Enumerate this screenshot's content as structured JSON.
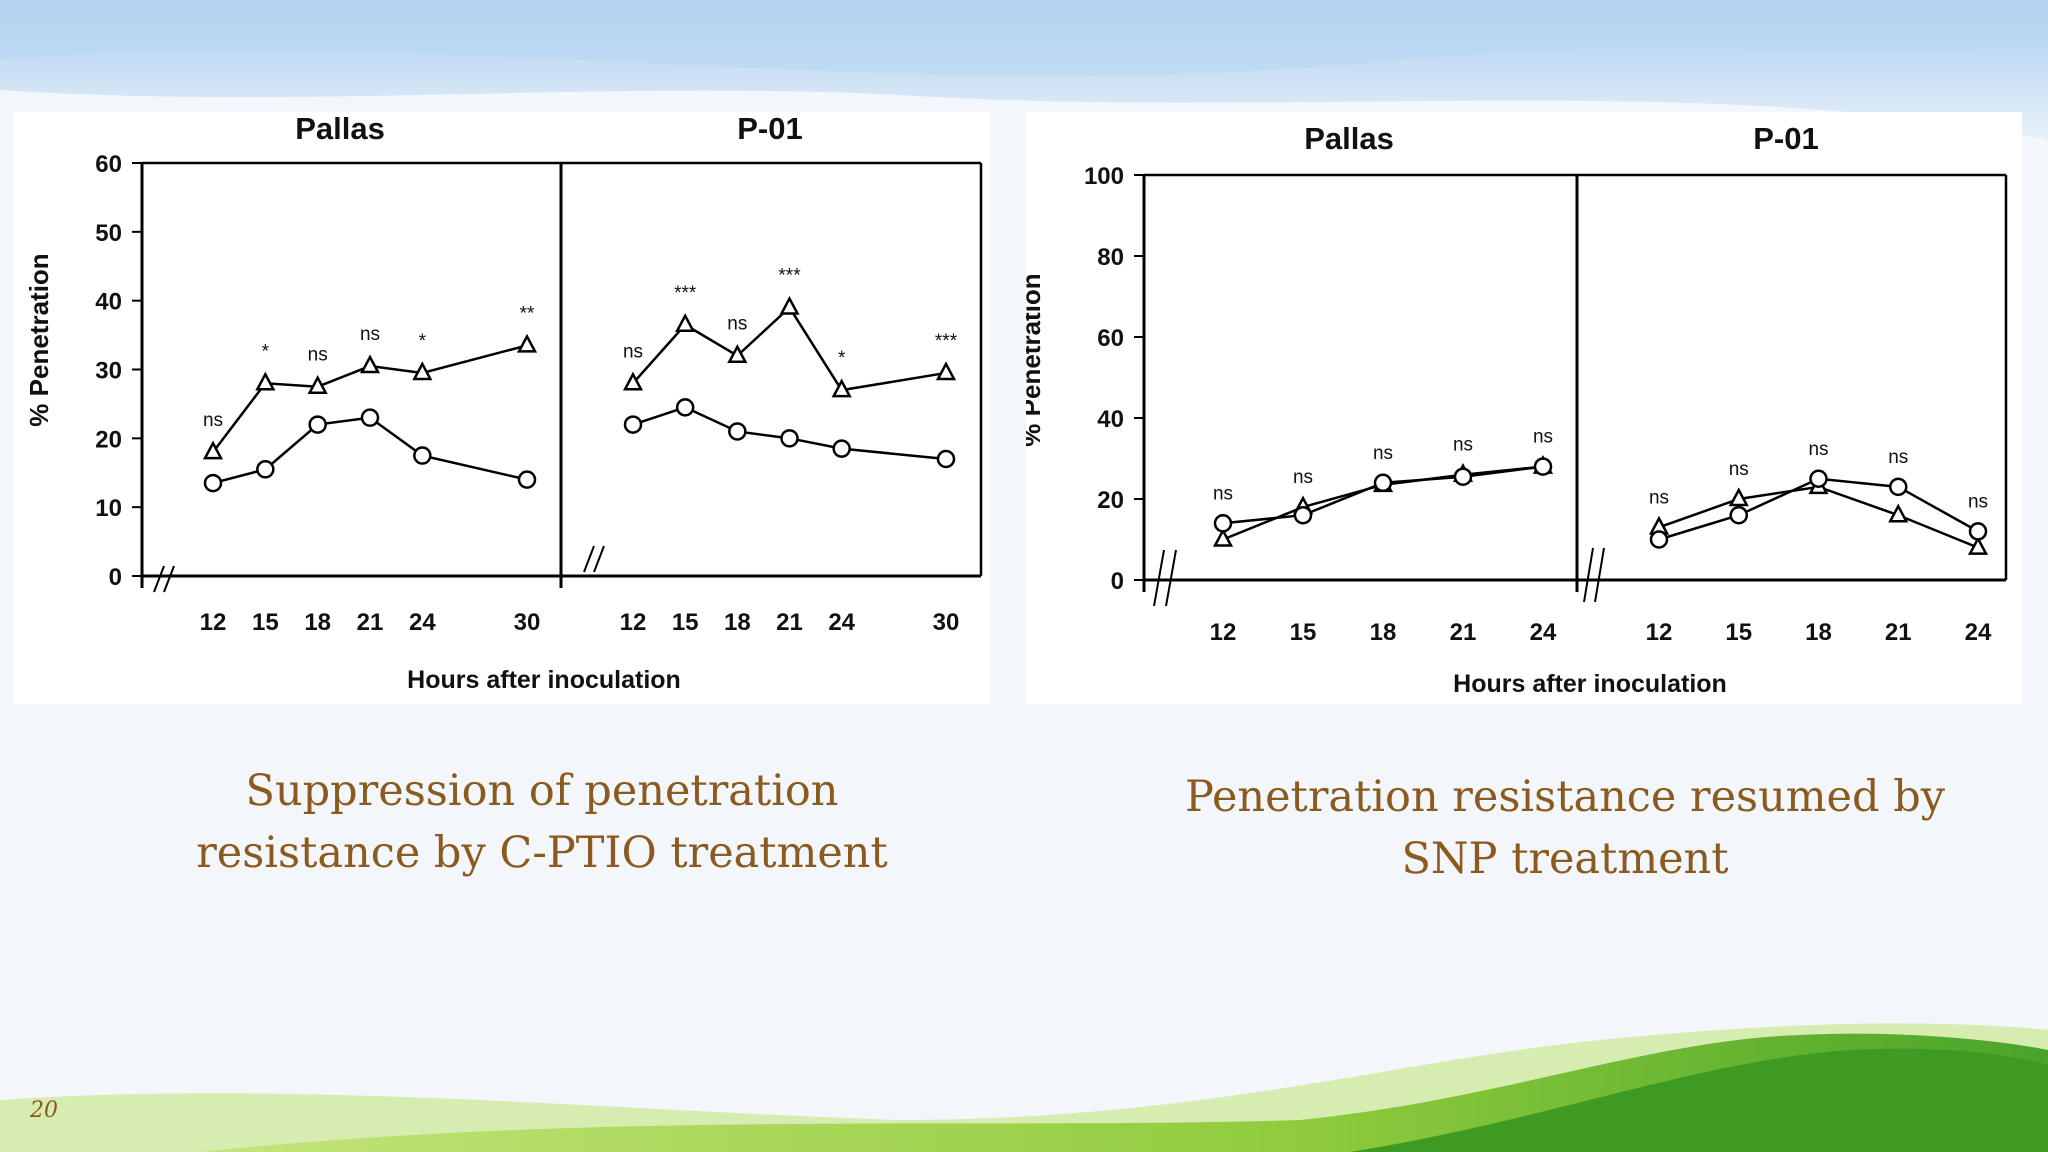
{
  "slide": {
    "number": "20",
    "caption_left": "Suppression of penetration\nresistance by C-PTIO treatment",
    "caption_right": "Penetration resistance resumed by\nSNP treatment"
  },
  "colors": {
    "text_accent": "#8a5a1e",
    "sky": "#a9cdee",
    "grass_light": "#b6dd55",
    "grass_dark": "#3f9a24"
  },
  "chart_data": [
    {
      "type": "line",
      "ylabel": "% Penetration",
      "xlabel": "Hours after inoculation",
      "ylim": [
        0,
        60
      ],
      "yticks": [
        0,
        10,
        20,
        30,
        40,
        50,
        60
      ],
      "axis_break": true,
      "markers": {
        "triangle": "open triangle",
        "circle": "open circle"
      },
      "panels": [
        {
          "title": "Pallas",
          "x": [
            12,
            15,
            18,
            21,
            24,
            30
          ],
          "xtick_labels": [
            "12",
            "15",
            "18",
            "21",
            "24",
            "30"
          ],
          "series": [
            {
              "marker": "triangle",
              "values": [
                18,
                28,
                27.5,
                30.5,
                29.5,
                33.5
              ]
            },
            {
              "marker": "circle",
              "values": [
                13.5,
                15.5,
                22,
                23,
                17.5,
                14
              ]
            }
          ],
          "annotations": [
            "ns",
            "*",
            "ns",
            "ns",
            "*",
            "**"
          ]
        },
        {
          "title": "P-01",
          "x": [
            12,
            15,
            18,
            21,
            24,
            30
          ],
          "xtick_labels": [
            "12",
            "15",
            "18",
            "21",
            "24",
            "30"
          ],
          "series": [
            {
              "marker": "triangle",
              "values": [
                28,
                36.5,
                32,
                39,
                27,
                29.5
              ]
            },
            {
              "marker": "circle",
              "values": [
                22,
                24.5,
                21,
                20,
                18.5,
                17
              ]
            }
          ],
          "annotations": [
            "ns",
            "***",
            "ns",
            "***",
            "*",
            "***"
          ]
        }
      ]
    },
    {
      "type": "line",
      "ylabel": "% Penetration",
      "xlabel": "Hours after inoculation",
      "ylim": [
        0,
        100
      ],
      "yticks": [
        0,
        20,
        40,
        60,
        80,
        100
      ],
      "axis_break": true,
      "markers": {
        "triangle": "open triangle",
        "circle": "open circle"
      },
      "panels": [
        {
          "title": "Pallas",
          "x": [
            12,
            15,
            18,
            21,
            24
          ],
          "xtick_labels": [
            "12",
            "15",
            "18",
            "21",
            "24"
          ],
          "series": [
            {
              "marker": "triangle",
              "values": [
                10,
                18,
                23.5,
                26,
                28
              ]
            },
            {
              "marker": "circle",
              "values": [
                14,
                16,
                24,
                25.5,
                28
              ]
            }
          ],
          "annotations": [
            "ns",
            "ns",
            "ns",
            "ns",
            "ns"
          ]
        },
        {
          "title": "P-01",
          "x": [
            12,
            15,
            18,
            21,
            24
          ],
          "xtick_labels": [
            "12",
            "15",
            "18",
            "21",
            "24"
          ],
          "series": [
            {
              "marker": "triangle",
              "values": [
                13,
                20,
                23,
                16,
                8
              ]
            },
            {
              "marker": "circle",
              "values": [
                10,
                16,
                25,
                23,
                12
              ]
            }
          ],
          "annotations": [
            "ns",
            "ns",
            "ns",
            "ns",
            "ns"
          ]
        }
      ]
    }
  ]
}
